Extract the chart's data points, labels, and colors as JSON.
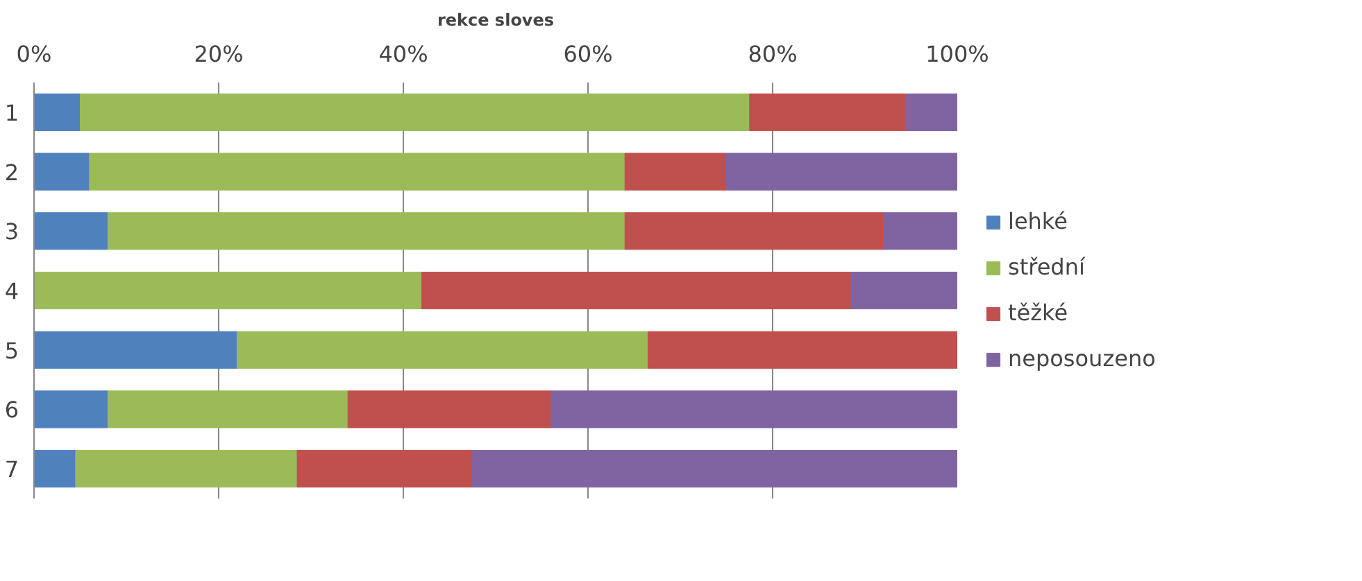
{
  "chart_data": {
    "type": "bar",
    "orientation": "horizontal",
    "stacked": true,
    "title": "rekce sloves",
    "categories": [
      "1",
      "2",
      "3",
      "4",
      "5",
      "6",
      "7"
    ],
    "series": [
      {
        "name": "lehké",
        "color": "#4f81bd",
        "values": [
          5,
          6,
          8,
          0,
          22,
          8,
          4.5
        ]
      },
      {
        "name": "střední",
        "color": "#9bbb59",
        "values": [
          72.5,
          58,
          56,
          42,
          44.5,
          26,
          24
        ]
      },
      {
        "name": "těžké",
        "color": "#c0504d",
        "values": [
          17,
          11,
          28,
          46.5,
          33.5,
          22,
          19
        ]
      },
      {
        "name": "neposouzeno",
        "color": "#8064a2",
        "values": [
          5.5,
          25,
          8,
          11.5,
          0,
          44,
          52.5
        ]
      }
    ],
    "xlim": [
      0,
      100
    ],
    "xticks": [
      {
        "value": 0,
        "label": "0%"
      },
      {
        "value": 20,
        "label": "20%"
      },
      {
        "value": 40,
        "label": "40%"
      },
      {
        "value": 60,
        "label": "60%"
      },
      {
        "value": 80,
        "label": "80%"
      },
      {
        "value": 100,
        "label": "100%"
      }
    ],
    "grid": "x",
    "legend": "right"
  }
}
